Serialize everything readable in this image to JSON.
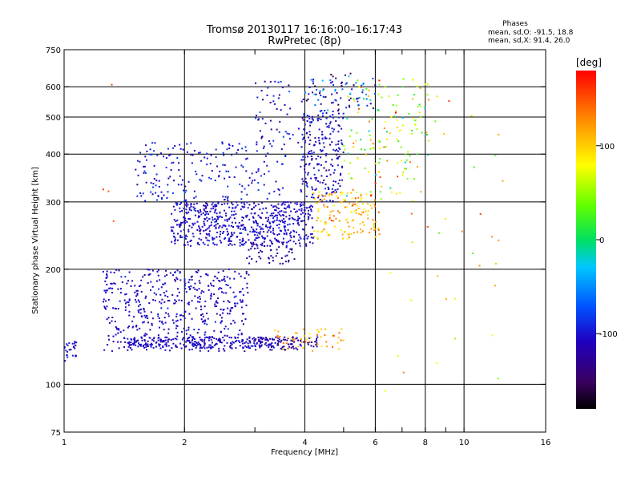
{
  "chart_data": {
    "type": "scatter",
    "title": "Tromsø 20130117 16:16:00–16:17:43",
    "subtitle": "RwPretec (8p)",
    "stats": {
      "heading": "Phases",
      "line1": "mean, sd,O: -91.5, 18.8",
      "line2": "mean, sd,X:  91.4, 26.0"
    },
    "xlabel": "Frequency [MHz]",
    "ylabel": "Stationary phase Virtual Height [km]",
    "x_scale": "log",
    "y_scale": "log",
    "xlim": [
      1,
      16
    ],
    "ylim": [
      75,
      750
    ],
    "xticks": [
      1,
      2,
      4,
      6,
      8,
      10,
      16
    ],
    "xtick_labels": [
      "1",
      "2",
      "4",
      "6",
      "8",
      "10",
      "16"
    ],
    "x_minor_ticks": [
      3,
      5,
      7,
      9
    ],
    "yticks": [
      75,
      100,
      200,
      300,
      400,
      500,
      600,
      750
    ],
    "ytick_labels": [
      "75",
      "100",
      "200",
      "300",
      "400",
      "500",
      "600",
      "750"
    ],
    "ygrid": [
      100,
      200,
      300,
      400,
      500,
      600
    ],
    "xgrid": [
      2,
      4,
      6,
      8,
      10
    ],
    "grid": true,
    "colorbar": {
      "label": "[deg]",
      "range": [
        -180,
        180
      ],
      "ticks": [
        100,
        0,
        -100
      ],
      "tick_labels": [
        "100",
        "0",
        "-100"
      ]
    },
    "clusters": [
      {
        "f_min": 1.0,
        "f_max": 1.08,
        "h_min": 115,
        "h_max": 130,
        "phase": -105,
        "spread": 15,
        "n": 25
      },
      {
        "f_min": 1.25,
        "f_max": 2.9,
        "h_min": 122,
        "h_max": 200,
        "phase": -108,
        "spread": 15,
        "n": 520
      },
      {
        "f_min": 1.45,
        "f_max": 3.5,
        "h_min": 124,
        "h_max": 133,
        "phase": -105,
        "spread": 12,
        "n": 220
      },
      {
        "f_min": 3.0,
        "f_max": 4.3,
        "h_min": 123,
        "h_max": 133,
        "phase": -125,
        "spread": 12,
        "n": 80
      },
      {
        "f_min": 3.3,
        "f_max": 5.0,
        "h_min": 122,
        "h_max": 140,
        "phase": 115,
        "spread": 30,
        "n": 50
      },
      {
        "f_min": 1.85,
        "f_max": 4.2,
        "h_min": 230,
        "h_max": 300,
        "phase": -105,
        "spread": 15,
        "n": 600
      },
      {
        "f_min": 2.8,
        "f_max": 3.8,
        "h_min": 205,
        "h_max": 235,
        "phase": -125,
        "spread": 10,
        "n": 50
      },
      {
        "f_min": 1.5,
        "f_max": 3.6,
        "h_min": 300,
        "h_max": 430,
        "phase": -98,
        "spread": 20,
        "n": 200
      },
      {
        "f_min": 3.9,
        "f_max": 5.0,
        "h_min": 300,
        "h_max": 520,
        "phase": -105,
        "spread": 20,
        "n": 220
      },
      {
        "f_min": 3.0,
        "f_max": 4.0,
        "h_min": 420,
        "h_max": 620,
        "phase": -110,
        "spread": 30,
        "n": 60
      },
      {
        "f_min": 4.2,
        "f_max": 6.2,
        "h_min": 240,
        "h_max": 320,
        "phase": 110,
        "spread": 35,
        "n": 140
      },
      {
        "f_min": 5.0,
        "f_max": 8.2,
        "h_min": 300,
        "h_max": 640,
        "phase": 60,
        "spread": 80,
        "n": 150
      },
      {
        "f_min": 4.0,
        "f_max": 6.0,
        "h_min": 520,
        "h_max": 650,
        "phase": -90,
        "spread": 60,
        "n": 80
      },
      {
        "f_min": 6.0,
        "f_max": 12.5,
        "h_min": 90,
        "h_max": 600,
        "phase": 90,
        "spread": 60,
        "n": 40
      },
      {
        "f_min": 1.2,
        "f_max": 1.4,
        "h_min": 85,
        "h_max": 650,
        "phase": 140,
        "spread": 30,
        "n": 4
      }
    ]
  }
}
